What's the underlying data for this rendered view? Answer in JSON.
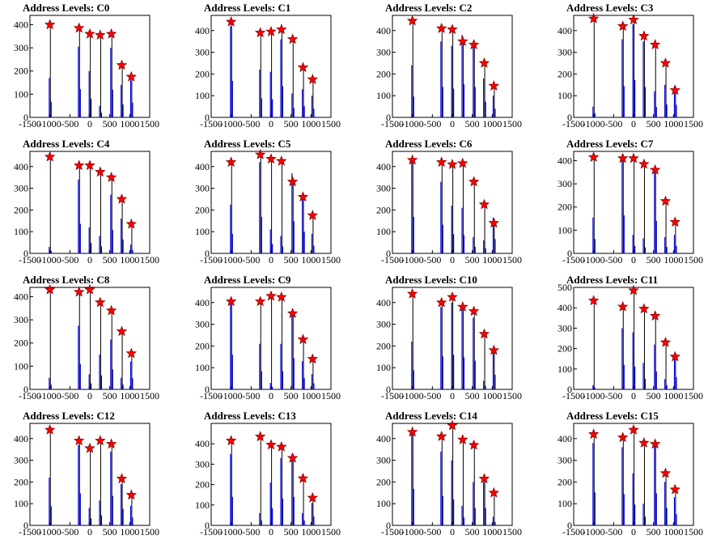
{
  "title_prefix": "Address Levels: ",
  "x_ticks": [
    -1500,
    -1000,
    -500,
    0,
    500,
    1000,
    1500
  ],
  "x_tick_labels": [
    "-1500",
    "-1000",
    "-500",
    "0",
    "500",
    "1000",
    "1500"
  ],
  "peak_x": [
    -1000,
    -270,
    0,
    260,
    540,
    800,
    1040
  ],
  "colors": {
    "hist": "#0000dd",
    "marker": "#ff0000",
    "frame": "#000000"
  },
  "chart_data": [
    {
      "type": "bar",
      "title": "Address Levels: C0",
      "xlim": [
        -1500,
        1500
      ],
      "ylim": [
        0,
        440
      ],
      "y_ticks": [
        0,
        100,
        200,
        300,
        400
      ],
      "peaks_y": [
        400,
        385,
        360,
        355,
        360,
        225,
        175
      ],
      "bar_heights": [
        170,
        305,
        200,
        50,
        300,
        140,
        160
      ],
      "marker": "red star"
    },
    {
      "type": "bar",
      "title": "Address Levels: C1",
      "xlim": [
        -1500,
        1500
      ],
      "ylim": [
        0,
        470
      ],
      "y_ticks": [
        0,
        100,
        200,
        300,
        400
      ],
      "peaks_y": [
        440,
        390,
        395,
        405,
        360,
        230,
        175
      ],
      "bar_heights": [
        420,
        220,
        210,
        360,
        110,
        130,
        100
      ],
      "marker": "red star"
    },
    {
      "type": "bar",
      "title": "Address Levels: C2",
      "xlim": [
        -1500,
        1500
      ],
      "ylim": [
        0,
        470
      ],
      "y_ticks": [
        0,
        100,
        200,
        300,
        400
      ],
      "peaks_y": [
        445,
        410,
        405,
        350,
        335,
        250,
        145
      ],
      "bar_heights": [
        240,
        350,
        330,
        380,
        350,
        180,
        100
      ],
      "marker": "red star"
    },
    {
      "type": "bar",
      "title": "Address Levels: C3",
      "xlim": [
        -1500,
        1500
      ],
      "ylim": [
        0,
        470
      ],
      "y_ticks": [
        0,
        100,
        200,
        300,
        400
      ],
      "peaks_y": [
        455,
        420,
        450,
        375,
        335,
        250,
        125
      ],
      "bar_heights": [
        50,
        360,
        430,
        350,
        120,
        150,
        145
      ],
      "marker": "red star"
    },
    {
      "type": "bar",
      "title": "Address Levels: C4",
      "xlim": [
        -1500,
        1500
      ],
      "ylim": [
        0,
        470
      ],
      "y_ticks": [
        0,
        100,
        200,
        300,
        400
      ],
      "peaks_y": [
        445,
        405,
        405,
        375,
        350,
        250,
        135
      ],
      "bar_heights": [
        30,
        340,
        120,
        80,
        270,
        160,
        40
      ],
      "marker": "red star"
    },
    {
      "type": "bar",
      "title": "Address Levels: C5",
      "xlim": [
        -1500,
        1500
      ],
      "ylim": [
        0,
        470
      ],
      "y_ticks": [
        0,
        100,
        200,
        300,
        400
      ],
      "peaks_y": [
        420,
        455,
        435,
        425,
        330,
        260,
        175
      ],
      "bar_heights": [
        225,
        420,
        110,
        80,
        370,
        250,
        90
      ],
      "marker": "red star"
    },
    {
      "type": "bar",
      "title": "Address Levels: C6",
      "xlim": [
        -1500,
        1500
      ],
      "ylim": [
        0,
        470
      ],
      "y_ticks": [
        0,
        100,
        200,
        300,
        400
      ],
      "peaks_y": [
        430,
        420,
        410,
        415,
        330,
        225,
        140
      ],
      "bar_heights": [
        420,
        330,
        220,
        210,
        75,
        60,
        165
      ],
      "marker": "red star"
    },
    {
      "type": "bar",
      "title": "Address Levels: C7",
      "xlim": [
        -1500,
        1500
      ],
      "ylim": [
        0,
        440
      ],
      "y_ticks": [
        0,
        100,
        200,
        300,
        400
      ],
      "peaks_y": [
        415,
        410,
        410,
        385,
        360,
        225,
        135
      ],
      "bar_heights": [
        155,
        410,
        80,
        65,
        350,
        70,
        80
      ],
      "marker": "red star"
    },
    {
      "type": "bar",
      "title": "Address Levels: C8",
      "xlim": [
        -1500,
        1500
      ],
      "ylim": [
        0,
        440
      ],
      "y_ticks": [
        0,
        100,
        200,
        300,
        400
      ],
      "peaks_y": [
        430,
        420,
        430,
        375,
        340,
        250,
        155
      ],
      "bar_heights": [
        50,
        275,
        65,
        150,
        215,
        50,
        120
      ],
      "marker": "red star"
    },
    {
      "type": "bar",
      "title": "Address Levels: C9",
      "xlim": [
        -1500,
        1500
      ],
      "ylim": [
        0,
        470
      ],
      "y_ticks": [
        0,
        100,
        200,
        300,
        400
      ],
      "peaks_y": [
        405,
        405,
        430,
        425,
        350,
        230,
        140
      ],
      "bar_heights": [
        400,
        210,
        30,
        210,
        360,
        130,
        70
      ],
      "marker": "red star"
    },
    {
      "type": "bar",
      "title": "Address Levels: C10",
      "xlim": [
        -1500,
        1500
      ],
      "ylim": [
        0,
        470
      ],
      "y_ticks": [
        0,
        100,
        200,
        300,
        400
      ],
      "peaks_y": [
        440,
        400,
        425,
        380,
        360,
        255,
        180
      ],
      "bar_heights": [
        220,
        380,
        400,
        370,
        330,
        40,
        170
      ],
      "marker": "red star"
    },
    {
      "type": "bar",
      "title": "Address Levels: C11",
      "xlim": [
        -1500,
        1500
      ],
      "ylim": [
        0,
        500
      ],
      "y_ticks": [
        0,
        100,
        200,
        300,
        400,
        500
      ],
      "peaks_y": [
        435,
        405,
        485,
        395,
        360,
        230,
        160
      ],
      "bar_heights": [
        20,
        300,
        280,
        130,
        220,
        50,
        150
      ],
      "marker": "red star"
    },
    {
      "type": "bar",
      "title": "Address Levels: C12",
      "xlim": [
        -1500,
        1500
      ],
      "ylim": [
        0,
        470
      ],
      "y_ticks": [
        0,
        100,
        200,
        300,
        400
      ],
      "peaks_y": [
        440,
        390,
        355,
        390,
        375,
        215,
        140
      ],
      "bar_heights": [
        220,
        370,
        80,
        115,
        340,
        190,
        90
      ],
      "marker": "red star"
    },
    {
      "type": "bar",
      "title": "Address Levels: C13",
      "xlim": [
        -1500,
        1500
      ],
      "ylim": [
        0,
        500
      ],
      "y_ticks": [
        0,
        100,
        200,
        300,
        400
      ],
      "peaks_y": [
        415,
        435,
        395,
        385,
        330,
        230,
        135
      ],
      "bar_heights": [
        350,
        60,
        210,
        330,
        350,
        60,
        110
      ],
      "marker": "red star"
    },
    {
      "type": "bar",
      "title": "Address Levels: C14",
      "xlim": [
        -1500,
        1500
      ],
      "ylim": [
        0,
        470
      ],
      "y_ticks": [
        0,
        100,
        200,
        300,
        400
      ],
      "peaks_y": [
        430,
        410,
        460,
        395,
        370,
        215,
        150
      ],
      "bar_heights": [
        420,
        340,
        300,
        90,
        200,
        200,
        40
      ],
      "marker": "red star"
    },
    {
      "type": "bar",
      "title": "Address Levels: C15",
      "xlim": [
        -1500,
        1500
      ],
      "ylim": [
        0,
        470
      ],
      "y_ticks": [
        0,
        100,
        200,
        300,
        400
      ],
      "peaks_y": [
        420,
        405,
        440,
        380,
        375,
        240,
        165
      ],
      "bar_heights": [
        380,
        360,
        240,
        100,
        370,
        200,
        130
      ],
      "marker": "red star"
    }
  ]
}
